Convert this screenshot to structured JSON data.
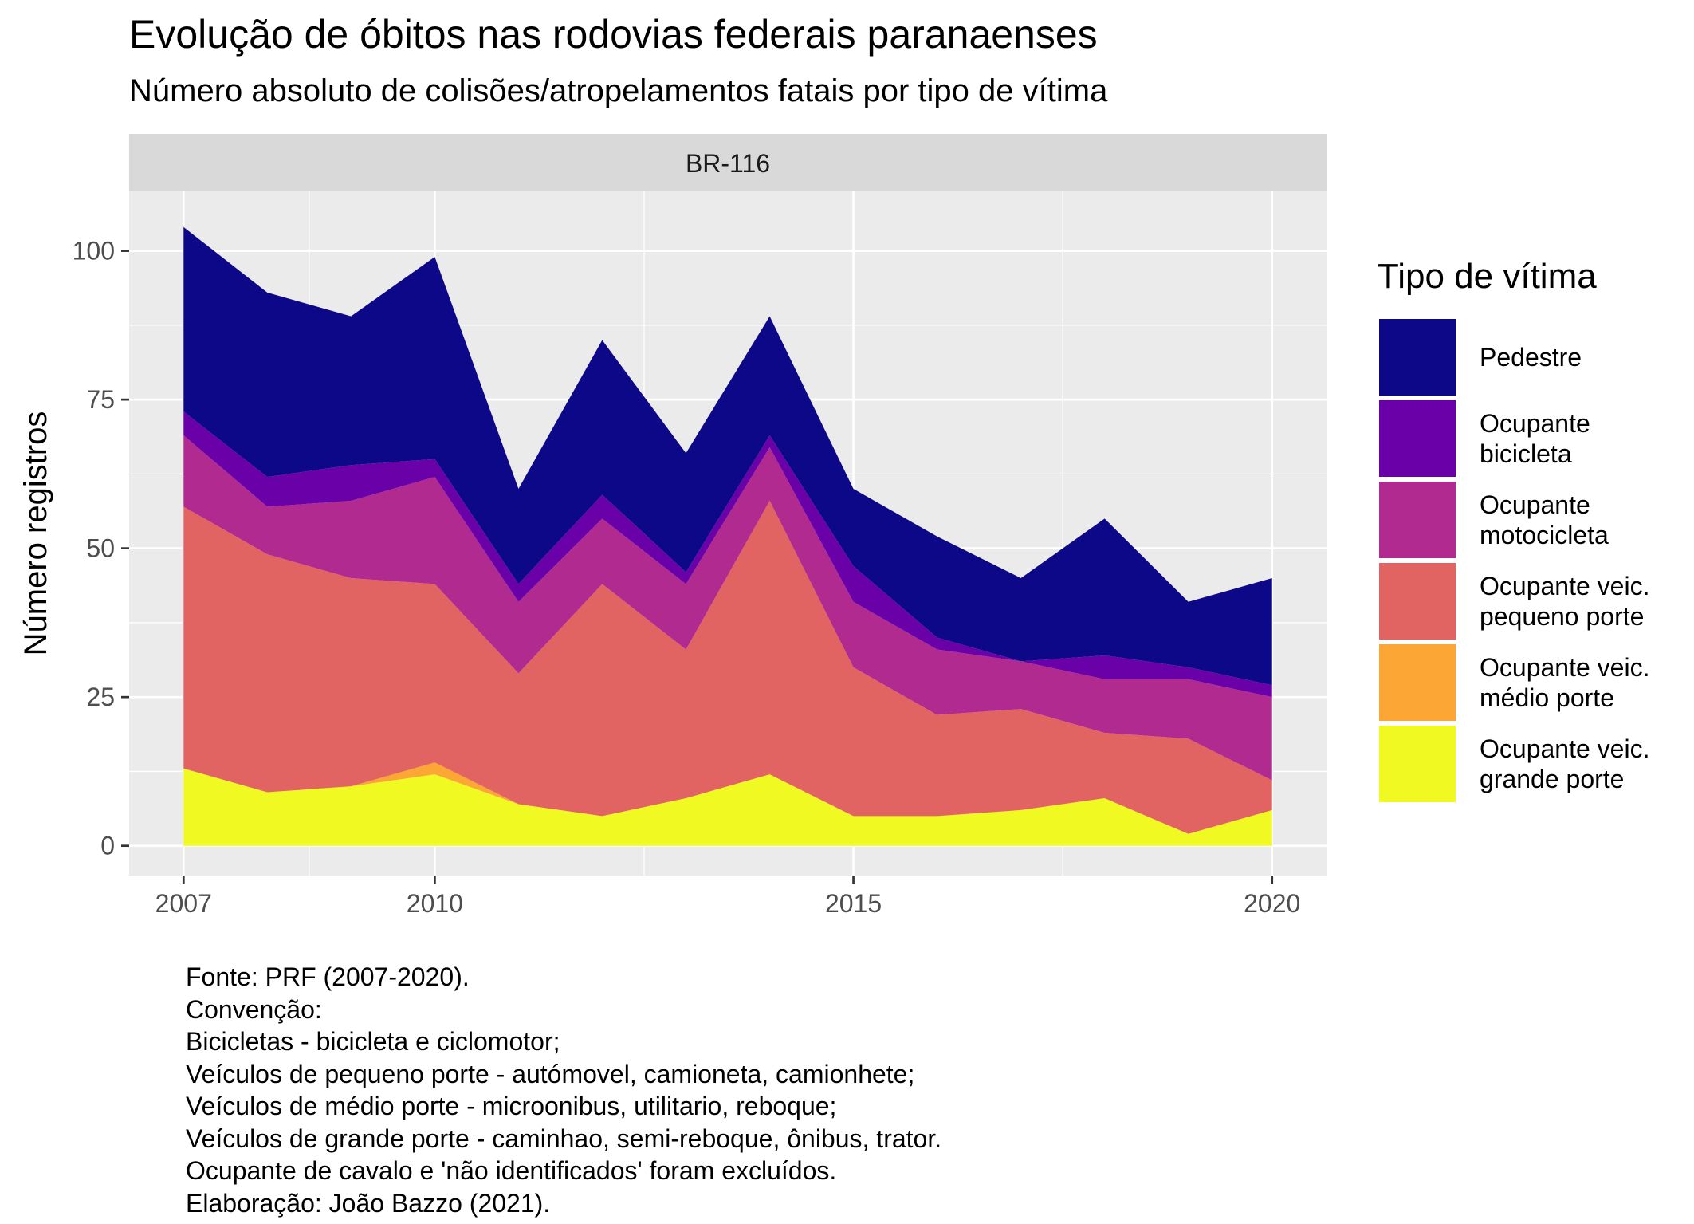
{
  "title": "Evolução de óbitos nas rodovias federais paranaenses",
  "subtitle": "Número absoluto de colisões/atropelamentos fatais por tipo de vítima",
  "caption": [
    "Fonte: PRF (2007-2020).",
    "Convenção:",
    "Bicicletas - bicicleta e ciclomotor;",
    "Veículos de pequeno porte - autómovel, camioneta, camionhete;",
    "Veículos de médio porte - microonibus, utilitario, reboque;",
    "Veículos de grande porte - caminhao, semi-reboque, ônibus, trator.",
    "Ocupante de cavalo e 'não identificados' foram excluídos.",
    "Elaboração: João Bazzo (2021)."
  ],
  "legend": {
    "title": "Tipo de vítima",
    "items": [
      {
        "lines": [
          "Pedestre"
        ],
        "color": "#0d0887"
      },
      {
        "lines": [
          "Ocupante",
          "bicicleta"
        ],
        "color": "#6a00a8"
      },
      {
        "lines": [
          "Ocupante",
          "motocicleta"
        ],
        "color": "#b12a90"
      },
      {
        "lines": [
          "Ocupante veic.",
          "pequeno porte"
        ],
        "color": "#e16462"
      },
      {
        "lines": [
          "Ocupante veic.",
          "médio porte"
        ],
        "color": "#fca636"
      },
      {
        "lines": [
          "Ocupante veic.",
          "grande porte"
        ],
        "color": "#f0f921"
      }
    ]
  },
  "chart_data": {
    "type": "area",
    "stacked": true,
    "facet": "BR-116",
    "xlabel": "",
    "ylabel": "Número registros",
    "x": [
      2007,
      2008,
      2009,
      2010,
      2011,
      2012,
      2013,
      2014,
      2015,
      2016,
      2017,
      2018,
      2019,
      2020
    ],
    "xticks": [
      2007,
      2010,
      2015,
      2020
    ],
    "yticks": [
      0,
      25,
      50,
      75,
      100
    ],
    "xlim": [
      2006.35,
      2020.65
    ],
    "ylim": [
      -5,
      110
    ],
    "grid": true,
    "legend_position": "right",
    "series": [
      {
        "name": "Ocupante veic. grande porte",
        "color": "#f0f921",
        "values": [
          13,
          9,
          10,
          12,
          7,
          5,
          8,
          12,
          5,
          5,
          6,
          8,
          2,
          6
        ]
      },
      {
        "name": "Ocupante veic. médio porte",
        "color": "#fca636",
        "values": [
          0,
          0,
          0,
          2,
          0,
          0,
          0,
          0,
          0,
          0,
          0,
          0,
          0,
          0
        ]
      },
      {
        "name": "Ocupante veic. pequeno porte",
        "color": "#e16462",
        "values": [
          44,
          40,
          35,
          30,
          22,
          39,
          25,
          46,
          25,
          17,
          17,
          11,
          16,
          5
        ]
      },
      {
        "name": "Ocupante motocicleta",
        "color": "#b12a90",
        "values": [
          12,
          8,
          13,
          18,
          12,
          11,
          11,
          9,
          11,
          11,
          8,
          9,
          10,
          14
        ]
      },
      {
        "name": "Ocupante bicicleta",
        "color": "#6a00a8",
        "values": [
          4,
          5,
          6,
          3,
          3,
          4,
          2,
          2,
          6,
          2,
          0,
          4,
          2,
          2
        ]
      },
      {
        "name": "Pedestre",
        "color": "#0d0887",
        "values": [
          31,
          31,
          25,
          34,
          16,
          26,
          20,
          20,
          13,
          17,
          14,
          23,
          11,
          18
        ]
      }
    ]
  }
}
